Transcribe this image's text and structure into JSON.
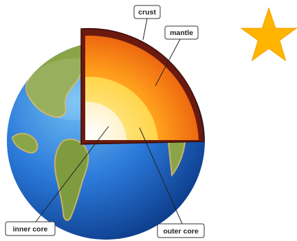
{
  "diagram": {
    "labels": {
      "crust": "crust",
      "mantle": "mantle",
      "inner_core": "inner core",
      "outer_core": "outer core"
    }
  },
  "colors": {
    "ocean": "#2a6fd0",
    "land": "#7a9a3a",
    "crust": "#6b1a10",
    "mantle": "#f07a10",
    "outer_core": "#ffd24a",
    "inner_core": "#fff6d8",
    "star": "#ffb400"
  },
  "icons": {
    "star": "star-icon"
  }
}
